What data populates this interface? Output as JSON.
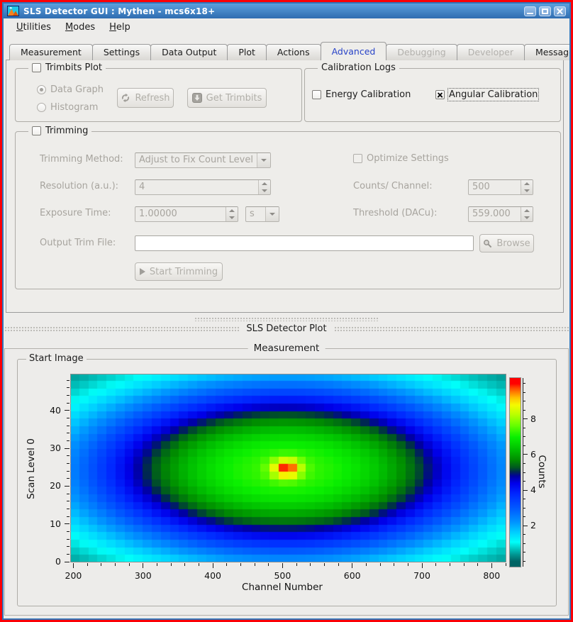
{
  "window": {
    "title": "SLS Detector GUI : Mythen - mcs6x18+",
    "buttons": [
      "minimize",
      "maximize",
      "close"
    ]
  },
  "menu": {
    "items": [
      {
        "label": "Utilities",
        "mnemonic": "U"
      },
      {
        "label": "Modes",
        "mnemonic": "M"
      },
      {
        "label": "Help",
        "mnemonic": "H"
      }
    ]
  },
  "tabs": [
    {
      "label": "Measurement",
      "state": "normal"
    },
    {
      "label": "Settings",
      "state": "normal"
    },
    {
      "label": "Data Output",
      "state": "normal"
    },
    {
      "label": "Plot",
      "state": "normal"
    },
    {
      "label": "Actions",
      "state": "normal"
    },
    {
      "label": "Advanced",
      "state": "active"
    },
    {
      "label": "Debugging",
      "state": "disabled"
    },
    {
      "label": "Developer",
      "state": "disabled"
    },
    {
      "label": "Messages",
      "state": "normal"
    }
  ],
  "advanced": {
    "trimbits_plot": {
      "title": "Trimbits Plot",
      "checked": false,
      "radio_data_graph": "Data Graph",
      "radio_histogram": "Histogram",
      "data_graph_selected": true,
      "refresh_button": "Refresh",
      "get_trimbits_button": "Get Trimbits"
    },
    "calibration_logs": {
      "title": "Calibration Logs",
      "energy_label": "Energy Calibration",
      "energy_checked": false,
      "angular_label": "Angular Calibration",
      "angular_checked": true
    },
    "trimming": {
      "title": "Trimming",
      "checked": false,
      "method_label": "Trimming Method:",
      "method_value": "Adjust to Fix Count Level",
      "resolution_label": "Resolution (a.u.):",
      "resolution_value": "4",
      "exposure_label": "Exposure Time:",
      "exposure_value": "1.00000",
      "exposure_unit": "s",
      "optimize_label": "Optimize Settings",
      "optimize_checked": false,
      "counts_label": "Counts/ Channel:",
      "counts_value": "500",
      "threshold_label": "Threshold (DACu):",
      "threshold_value": "559.000",
      "output_label": "Output Trim File:",
      "output_value": "",
      "browse_button": "Browse",
      "start_button": "Start Trimming"
    }
  },
  "plot_dock": {
    "title": "SLS Detector Plot"
  },
  "measurement": {
    "title": "Measurement",
    "group_title": "Start Image"
  },
  "chart_data": {
    "type": "heatmap",
    "title": "Start Image",
    "xlabel": "Channel Number",
    "ylabel": "Scan Level 0",
    "colorbar_label": "Counts",
    "x_ticks": [
      200,
      300,
      400,
      500,
      600,
      700,
      800
    ],
    "x_minor_step": 20,
    "y_ticks": [
      0,
      10,
      20,
      30,
      40
    ],
    "y_minor_step": 2,
    "colorbar_ticks": [
      2,
      4,
      6,
      8
    ],
    "colorbar_minor_step": 0.5,
    "x_window": [
      196.5,
      820
    ],
    "y_window": [
      0,
      49.5
    ],
    "z_window": [
      -0.3,
      10.3
    ],
    "cell": {
      "x0": 196,
      "dx": 13,
      "y0": 0,
      "dy": 2
    },
    "peak": {
      "channel": 506,
      "scan_level": 24.8,
      "counts": 10
    },
    "model": {
      "description": "broad elliptical gaussian blob plus narrow central hot spot, cell-quantized",
      "broad": {
        "amplitude": 7.3,
        "center_x": 505,
        "sigma_x": 210,
        "center_y": 24.5,
        "sigma_y": 16,
        "shape_power": 1.25
      },
      "spike": {
        "amplitude": 2.7,
        "center_x": 506,
        "sigma_x": 15,
        "center_y": 24.8,
        "sigma_y": 1.8
      },
      "z_max": 10
    },
    "colormap_stops": [
      [
        0.0,
        [
          0,
          100,
          100
        ]
      ],
      [
        0.4,
        [
          0,
          150,
          145
        ]
      ],
      [
        0.8,
        [
          0,
          210,
          205
        ]
      ],
      [
        1.1,
        [
          0,
          255,
          250
        ]
      ],
      [
        1.6,
        [
          0,
          210,
          255
        ]
      ],
      [
        2.2,
        [
          0,
          150,
          255
        ]
      ],
      [
        3.0,
        [
          0,
          90,
          255
        ]
      ],
      [
        3.8,
        [
          0,
          40,
          255
        ]
      ],
      [
        4.4,
        [
          0,
          0,
          235
        ]
      ],
      [
        4.8,
        [
          0,
          0,
          160
        ]
      ],
      [
        5.05,
        [
          0,
          40,
          80
        ]
      ],
      [
        5.3,
        [
          0,
          90,
          30
        ]
      ],
      [
        5.7,
        [
          0,
          140,
          0
        ]
      ],
      [
        6.3,
        [
          0,
          190,
          0
        ]
      ],
      [
        7.0,
        [
          10,
          240,
          0
        ]
      ],
      [
        7.7,
        [
          110,
          255,
          0
        ]
      ],
      [
        8.3,
        [
          190,
          255,
          0
        ]
      ],
      [
        8.8,
        [
          245,
          250,
          0
        ]
      ],
      [
        9.2,
        [
          255,
          195,
          0
        ]
      ],
      [
        9.55,
        [
          255,
          120,
          0
        ]
      ],
      [
        9.8,
        [
          255,
          60,
          0
        ]
      ],
      [
        10.0,
        [
          255,
          0,
          0
        ]
      ]
    ]
  }
}
